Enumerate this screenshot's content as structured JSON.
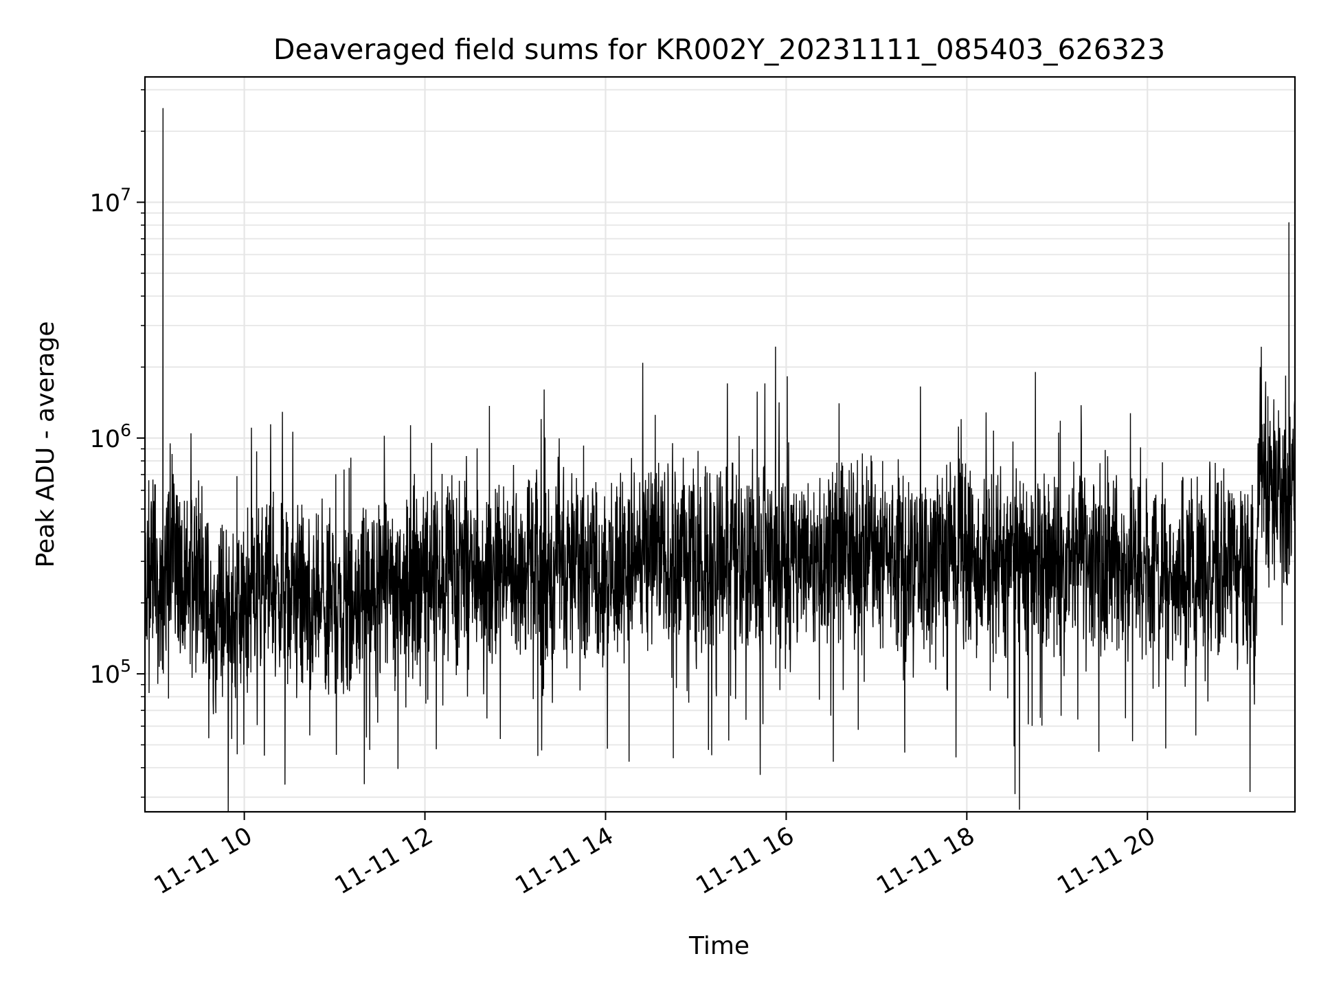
{
  "chart_data": {
    "type": "line",
    "title": "Deaveraged field sums for KR002Y_20231111_085403_626323",
    "xlabel": "Time",
    "ylabel": "Peak ADU - average",
    "y_scale": "log",
    "xlim": [
      "2023-11-11 08:54",
      "2023-11-11 21:38"
    ],
    "ylim": [
      26000,
      34000000
    ],
    "x_ticks": [
      {
        "value": "2023-11-11 10:00",
        "label": "11-11 10"
      },
      {
        "value": "2023-11-11 12:00",
        "label": "11-11 12"
      },
      {
        "value": "2023-11-11 14:00",
        "label": "11-11 14"
      },
      {
        "value": "2023-11-11 16:00",
        "label": "11-11 16"
      },
      {
        "value": "2023-11-11 18:00",
        "label": "11-11 18"
      },
      {
        "value": "2023-11-11 20:00",
        "label": "11-11 20"
      }
    ],
    "y_ticks": [
      {
        "value": 100000,
        "base": "10",
        "exp": "5"
      },
      {
        "value": 1000000,
        "base": "10",
        "exp": "6"
      },
      {
        "value": 10000000,
        "base": "10",
        "exp": "7"
      }
    ],
    "grid": true,
    "legend": "none",
    "series": [
      {
        "color": "#000000",
        "points": [
          [
            "2023-11-11 08:54",
            230000
          ],
          [
            "2023-11-11 09:00",
            320000
          ],
          [
            "2023-11-11 09:05",
            170000
          ],
          [
            "2023-11-11 09:06",
            25000000
          ],
          [
            "2023-11-11 09:07",
            260000
          ],
          [
            "2023-11-11 09:12",
            400000
          ],
          [
            "2023-11-11 09:20",
            210000
          ],
          [
            "2023-11-11 09:30",
            330000
          ],
          [
            "2023-11-11 09:38",
            130000
          ],
          [
            "2023-11-11 09:45",
            200000
          ],
          [
            "2023-11-11 09:55",
            170000
          ],
          [
            "2023-11-11 10:05",
            220000
          ],
          [
            "2023-11-11 10:15",
            240000
          ],
          [
            "2023-11-11 10:27",
            34000
          ],
          [
            "2023-11-11 10:30",
            210000
          ],
          [
            "2023-11-11 10:45",
            190000
          ],
          [
            "2023-11-11 11:00",
            210000
          ],
          [
            "2023-11-11 11:15",
            200000
          ],
          [
            "2023-11-11 11:30",
            230000
          ],
          [
            "2023-11-11 11:45",
            250000
          ],
          [
            "2023-11-11 12:00",
            260000
          ],
          [
            "2023-11-11 12:20",
            300000
          ],
          [
            "2023-11-11 12:40",
            250000
          ],
          [
            "2023-11-11 13:00",
            280000
          ],
          [
            "2023-11-11 13:15",
            45000
          ],
          [
            "2023-11-11 13:20",
            270000
          ],
          [
            "2023-11-11 13:40",
            300000
          ],
          [
            "2023-11-11 14:00",
            260000
          ],
          [
            "2023-11-11 14:20",
            330000
          ],
          [
            "2023-11-11 14:33",
            1250000
          ],
          [
            "2023-11-11 14:40",
            320000
          ],
          [
            "2023-11-11 14:45",
            44000
          ],
          [
            "2023-11-11 15:00",
            330000
          ],
          [
            "2023-11-11 15:30",
            300000
          ],
          [
            "2023-11-11 16:00",
            310000
          ],
          [
            "2023-11-11 16:30",
            320000
          ],
          [
            "2023-11-11 17:00",
            330000
          ],
          [
            "2023-11-11 17:30",
            300000
          ],
          [
            "2023-11-11 18:00",
            310000
          ],
          [
            "2023-11-11 18:15",
            280000
          ],
          [
            "2023-11-11 18:32",
            31000
          ],
          [
            "2023-11-11 18:40",
            280000
          ],
          [
            "2023-11-11 19:00",
            300000
          ],
          [
            "2023-11-11 19:30",
            290000
          ],
          [
            "2023-11-11 20:00",
            280000
          ],
          [
            "2023-11-11 20:30",
            290000
          ],
          [
            "2023-11-11 21:00",
            300000
          ],
          [
            "2023-11-11 21:12",
            270000
          ],
          [
            "2023-11-11 21:15",
            700000
          ],
          [
            "2023-11-11 21:20",
            1500000
          ],
          [
            "2023-11-11 21:25",
            600000
          ],
          [
            "2023-11-11 21:30",
            550000
          ],
          [
            "2023-11-11 21:34",
            8200000
          ],
          [
            "2023-11-11 21:38",
            650000
          ]
        ]
      }
    ]
  }
}
